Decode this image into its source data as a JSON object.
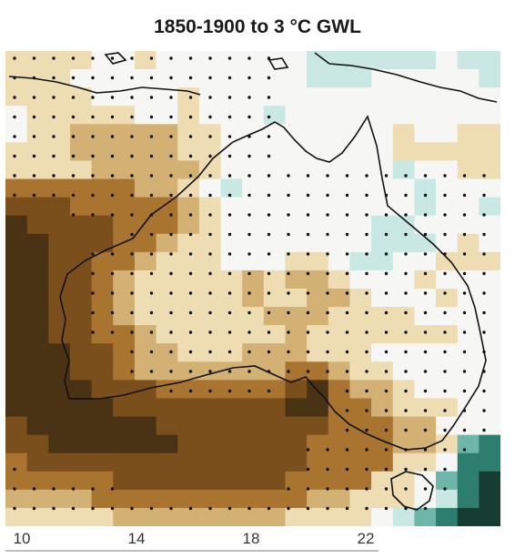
{
  "title": "1850-1900 to 3 °C GWL",
  "x_axis": {
    "ticks": [
      "10",
      "14",
      "18",
      "22"
    ]
  },
  "palette": {
    "dark_brown": "#4a3214",
    "brown": "#7b4f1c",
    "mid_brown": "#a8742f",
    "light_brown": "#d3b174",
    "tan": "#eedcb3",
    "white": "#f6f6f4",
    "light_teal": "#c9e8e4",
    "teal": "#6fb6aa",
    "dark_teal": "#2e7e70",
    "darkest_teal": "#173d33",
    "stipple": "#111111",
    "coastline": "#111111"
  }
}
